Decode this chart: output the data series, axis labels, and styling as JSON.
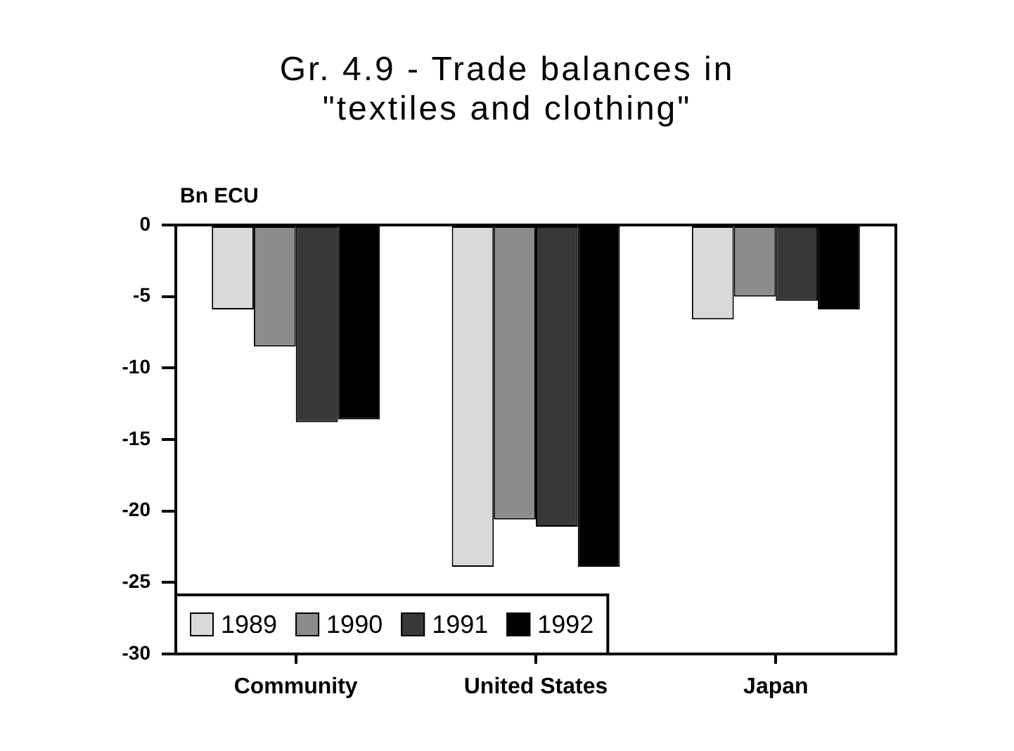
{
  "chart_data": {
    "type": "bar",
    "title": "Gr. 4.9 - Trade balances in\n\"textiles and clothing\"",
    "ylabel": "Bn ECU",
    "categories": [
      "Community",
      "United States",
      "Japan"
    ],
    "series": [
      {
        "name": "1989",
        "color": "#d9d9d9",
        "values": [
          -5.9,
          -23.9,
          -6.6
        ]
      },
      {
        "name": "1990",
        "color": "#8c8c8c",
        "values": [
          -8.5,
          -20.6,
          -5.0
        ]
      },
      {
        "name": "1991",
        "color": "#383838",
        "values": [
          -13.8,
          -21.1,
          -5.3
        ]
      },
      {
        "name": "1992",
        "color": "#000000",
        "values": [
          -13.6,
          -23.9,
          -5.9
        ]
      }
    ],
    "ylim": [
      -30,
      0
    ],
    "yticks": [
      -30,
      -25,
      -20,
      -15,
      -10,
      -5,
      0
    ],
    "legend": "bottom left"
  }
}
